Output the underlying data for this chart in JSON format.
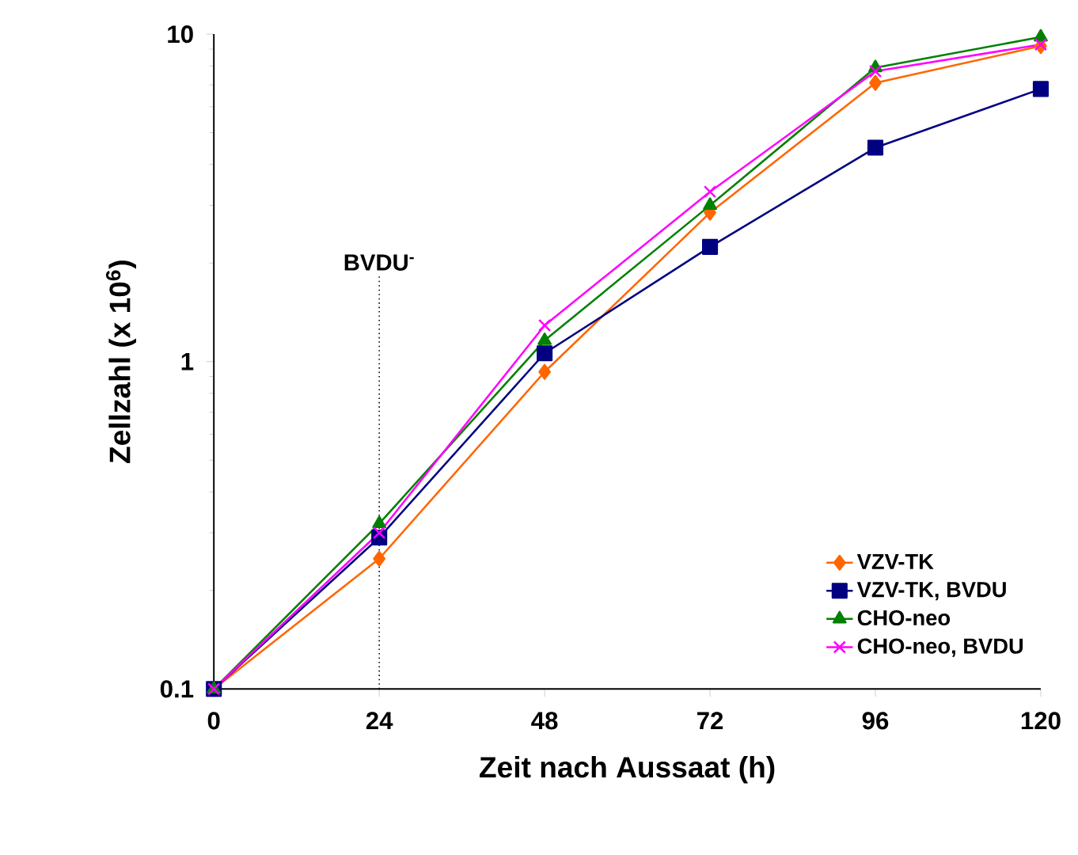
{
  "chart_data": {
    "type": "line",
    "xlabel": "Zeit nach Aussaat (h)",
    "ylabel": "Zellzahl (x 10$^{6}$)",
    "x": [
      0,
      24,
      48,
      72,
      96,
      120
    ],
    "series": [
      {
        "name": "VZV-TK",
        "color": "#ff6600",
        "marker": "diamond",
        "values": [
          0.1,
          0.25,
          0.93,
          2.85,
          7.1,
          9.2
        ]
      },
      {
        "name": "VZV-TK, BVDU",
        "color": "#000080",
        "marker": "square",
        "values": [
          0.1,
          0.29,
          1.06,
          2.24,
          4.5,
          6.8
        ]
      },
      {
        "name": "CHO-neo",
        "color": "#008000",
        "marker": "triangle",
        "values": [
          0.1,
          0.32,
          1.16,
          3.0,
          7.9,
          9.8
        ]
      },
      {
        "name": "CHO-neo, BVDU",
        "color": "#ff00ff",
        "marker": "cross",
        "values": [
          0.1,
          0.3,
          1.29,
          3.3,
          7.7,
          9.3
        ]
      }
    ],
    "log": "y",
    "xlim": [
      0,
      120
    ],
    "ylim": [
      0.1,
      10
    ],
    "xticks": [
      0,
      24,
      48,
      72,
      96,
      120
    ],
    "yticks": [
      0.1,
      1,
      10
    ],
    "ref_lines": [
      {
        "axis": "x",
        "value": 24,
        "label": "BVDU$^{-}$",
        "color": "#000000",
        "line_style": "dotted"
      }
    ],
    "legend": "bottom right",
    "line_style": "solid",
    "grid": false
  }
}
